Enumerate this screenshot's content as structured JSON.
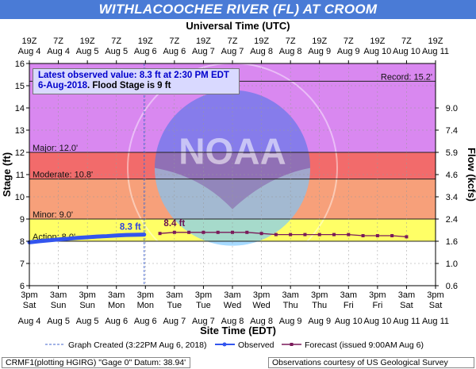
{
  "title": "WITHLACOOCHEE RIVER (FL) AT CROOM",
  "top_axis_title": "Universal Time (UTC)",
  "bottom_axis_title": "Site Time (EDT)",
  "left_axis_title": "Stage (ft)",
  "right_axis_title": "Flow (kcfs)",
  "callout": {
    "line1": "Latest observed value: 8.3 ft at 2:30 PM EDT",
    "line2_date": "6-Aug-2018",
    "line2_rest": ". Flood Stage is 9 ft"
  },
  "legend": {
    "created": "Graph Created (3:22PM Aug 6, 2018)",
    "observed": "Observed",
    "forecast": "Forecast (issued 9:00AM Aug 6)"
  },
  "footer": {
    "left": "CRMF1(plotting HGIRG) \"Gage 0\" Datum: 38.94'",
    "right": "Observations courtesy of US Geological Survey"
  },
  "watermark": {
    "center_text": "NOAA",
    "ring_text": "NATIONAL OCEANIC AND ATMOSPHERIC ADMINISTRATION · U.S. DEPARTMENT OF COMMERCE"
  },
  "colors": {
    "title_bar": "#4a7bd6",
    "record_band": "#d988f0",
    "major_band": "#f26b6b",
    "moderate_band": "#f7a07a",
    "minor_band": "#fdd48a",
    "action_band": "#ffff66",
    "observed": "#3355ee",
    "forecast": "#7a1a5a"
  },
  "chart_data": {
    "type": "line",
    "x_range": [
      0,
      168
    ],
    "ylim": [
      6,
      16
    ],
    "y_ticks": [
      6,
      7,
      8,
      9,
      10,
      11,
      12,
      13,
      14,
      15,
      16
    ],
    "flow_ticks": [
      {
        "stage": 6,
        "label": "0.6"
      },
      {
        "stage": 7,
        "label": "1.0"
      },
      {
        "stage": 8,
        "label": "1.6"
      },
      {
        "stage": 9,
        "label": "2.4"
      },
      {
        "stage": 10,
        "label": "3.4"
      },
      {
        "stage": 11,
        "label": "4.6"
      },
      {
        "stage": 12,
        "label": "5.9"
      },
      {
        "stage": 13,
        "label": "7.4"
      },
      {
        "stage": 14,
        "label": "9.0"
      }
    ],
    "top_ticks": [
      {
        "top": "19Z",
        "bottom": "Aug 4"
      },
      {
        "top": "7Z",
        "bottom": "Aug 4"
      },
      {
        "top": "19Z",
        "bottom": "Aug 5"
      },
      {
        "top": "7Z",
        "bottom": "Aug 5"
      },
      {
        "top": "19Z",
        "bottom": "Aug 6"
      },
      {
        "top": "7Z",
        "bottom": "Aug 6"
      },
      {
        "top": "19Z",
        "bottom": "Aug 7"
      },
      {
        "top": "7Z",
        "bottom": "Aug 7"
      },
      {
        "top": "19Z",
        "bottom": "Aug 8"
      },
      {
        "top": "7Z",
        "bottom": "Aug 8"
      },
      {
        "top": "19Z",
        "bottom": "Aug 9"
      },
      {
        "top": "7Z",
        "bottom": "Aug 9"
      },
      {
        "top": "19Z",
        "bottom": "Aug 10"
      },
      {
        "top": "7Z",
        "bottom": "Aug 10"
      },
      {
        "top": "19Z",
        "bottom": "Aug 11"
      }
    ],
    "bottom_ticks": [
      {
        "time": "3pm",
        "day": "Sat",
        "date": "Aug 4"
      },
      {
        "time": "3am",
        "day": "Sun",
        "date": "Aug 5"
      },
      {
        "time": "3pm",
        "day": "Sun",
        "date": "Aug 5"
      },
      {
        "time": "3am",
        "day": "Mon",
        "date": "Aug 6"
      },
      {
        "time": "3pm",
        "day": "Mon",
        "date": "Aug 6"
      },
      {
        "time": "3am",
        "day": "Tue",
        "date": "Aug 7"
      },
      {
        "time": "3pm",
        "day": "Tue",
        "date": "Aug 7"
      },
      {
        "time": "3am",
        "day": "Wed",
        "date": "Aug 8"
      },
      {
        "time": "3pm",
        "day": "Wed",
        "date": "Aug 8"
      },
      {
        "time": "3am",
        "day": "Thu",
        "date": "Aug 9"
      },
      {
        "time": "3pm",
        "day": "Thu",
        "date": "Aug 9"
      },
      {
        "time": "3am",
        "day": "Fri",
        "date": "Aug 10"
      },
      {
        "time": "3pm",
        "day": "Fri",
        "date": "Aug 10"
      },
      {
        "time": "3am",
        "day": "Sat",
        "date": "Aug 11"
      },
      {
        "time": "3pm",
        "day": "Sat",
        "date": "Aug 11"
      }
    ],
    "flood_categories": [
      {
        "name": "Record",
        "label": "Record: 15.2'",
        "from": 15.2,
        "to": 16,
        "color": "#d988f0"
      },
      {
        "name": "Major",
        "label": "Major: 12.0'",
        "from": 12.0,
        "to": 15.2,
        "color": "#d988f0"
      },
      {
        "name": "Moderate",
        "label": "Moderate: 10.8'",
        "from": 10.8,
        "to": 12.0,
        "color": "#f26b6b"
      },
      {
        "name": "Minor",
        "label": "Minor: 9.0'",
        "from": 9.0,
        "to": 10.8,
        "color": "#f7a07a"
      },
      {
        "name": "Action",
        "label": "Action: 8.0'",
        "from": 8.0,
        "to": 9.0,
        "color": "#fdd48a"
      }
    ],
    "graph_created_x": 47.5,
    "observed": {
      "name": "Observed",
      "label": "8.3 ft",
      "x": [
        0,
        4,
        8,
        12,
        16,
        20,
        24,
        28,
        32,
        36,
        40,
        44,
        47.5
      ],
      "y": [
        7.95,
        8.0,
        8.04,
        8.08,
        8.11,
        8.15,
        8.18,
        8.21,
        8.23,
        8.26,
        8.28,
        8.29,
        8.3
      ]
    },
    "forecast": {
      "name": "Forecast (issued 9:00AM Aug 6)",
      "label": "8.4 ft",
      "x": [
        54,
        60,
        66,
        72,
        78,
        84,
        90,
        96,
        102,
        108,
        114,
        120,
        126,
        132,
        138,
        144,
        150,
        156
      ],
      "y": [
        8.35,
        8.4,
        8.4,
        8.4,
        8.4,
        8.4,
        8.4,
        8.35,
        8.3,
        8.3,
        8.3,
        8.3,
        8.3,
        8.3,
        8.25,
        8.25,
        8.25,
        8.2
      ]
    }
  }
}
